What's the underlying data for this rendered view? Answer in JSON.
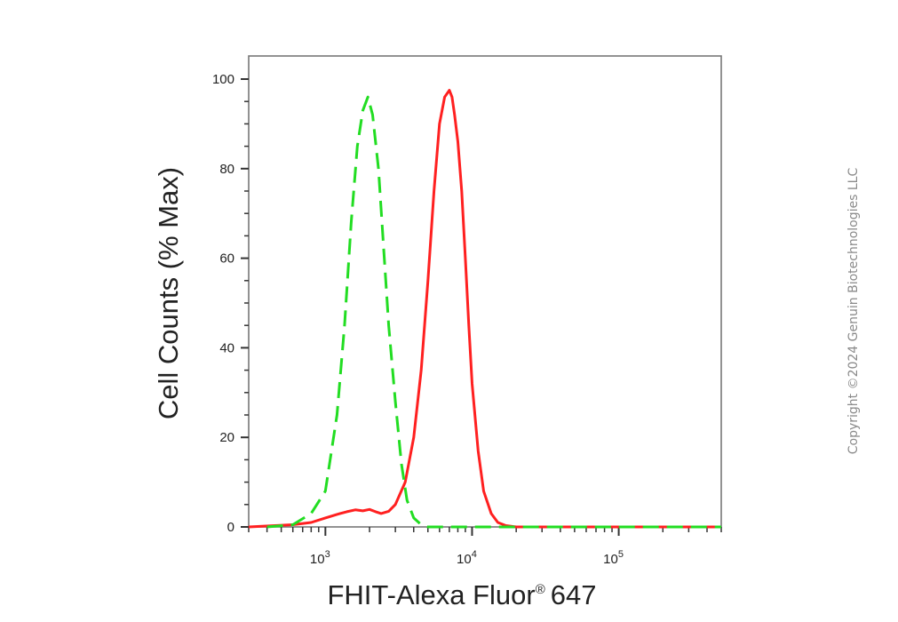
{
  "chart_data": {
    "type": "line",
    "xscale": "log",
    "xlim": [
      300,
      500000
    ],
    "ylim": [
      0,
      105
    ],
    "xlabel": "FHIT-Alexa Fluor",
    "xlabel_mark": "®",
    "xlabel_suffix": "647",
    "ylabel": "Cell Counts (% Max)",
    "y_ticks": [
      0,
      20,
      40,
      60,
      80,
      100
    ],
    "x_ticks": [
      {
        "value": 1000,
        "base": "10",
        "exp": "3"
      },
      {
        "value": 10000,
        "base": "10",
        "exp": "4"
      },
      {
        "value": 100000,
        "base": "10",
        "exp": "5"
      }
    ],
    "grid": false,
    "legend": "none",
    "series": [
      {
        "color": "#ff2020",
        "style": "solid",
        "x": [
          300,
          600,
          800,
          1000,
          1200,
          1400,
          1600,
          1800,
          2000,
          2200,
          2400,
          2700,
          3000,
          3500,
          4000,
          4500,
          5000,
          5500,
          6000,
          6500,
          7000,
          7300,
          7600,
          8000,
          8500,
          9000,
          9500,
          10000,
          11000,
          12000,
          13500,
          15000,
          17000,
          20000,
          30000,
          100000,
          500000
        ],
        "y": [
          0,
          0.5,
          1,
          2,
          2.8,
          3.4,
          3.8,
          3.6,
          3.9,
          3.4,
          3.0,
          3.5,
          5,
          10,
          20,
          35,
          55,
          75,
          90,
          96,
          97.5,
          96,
          92,
          86,
          75,
          60,
          45,
          32,
          17,
          8,
          3,
          1,
          0.3,
          0,
          0,
          0,
          0
        ]
      },
      {
        "color": "#22dd22",
        "style": "dashed",
        "x": [
          400,
          600,
          800,
          1000,
          1200,
          1350,
          1500,
          1650,
          1800,
          1950,
          2100,
          2300,
          2500,
          2700,
          3000,
          3300,
          3600,
          4000,
          4500,
          5000,
          7000,
          10000,
          100000,
          500000
        ],
        "y": [
          0,
          0.5,
          3,
          8,
          25,
          45,
          68,
          85,
          93,
          96,
          92,
          80,
          62,
          45,
          28,
          14,
          6,
          2,
          0.5,
          0,
          0,
          0,
          0,
          0
        ]
      }
    ]
  },
  "watermark": {
    "text": "Copyright ©2024 Genuin Biotechnologies LLC"
  }
}
